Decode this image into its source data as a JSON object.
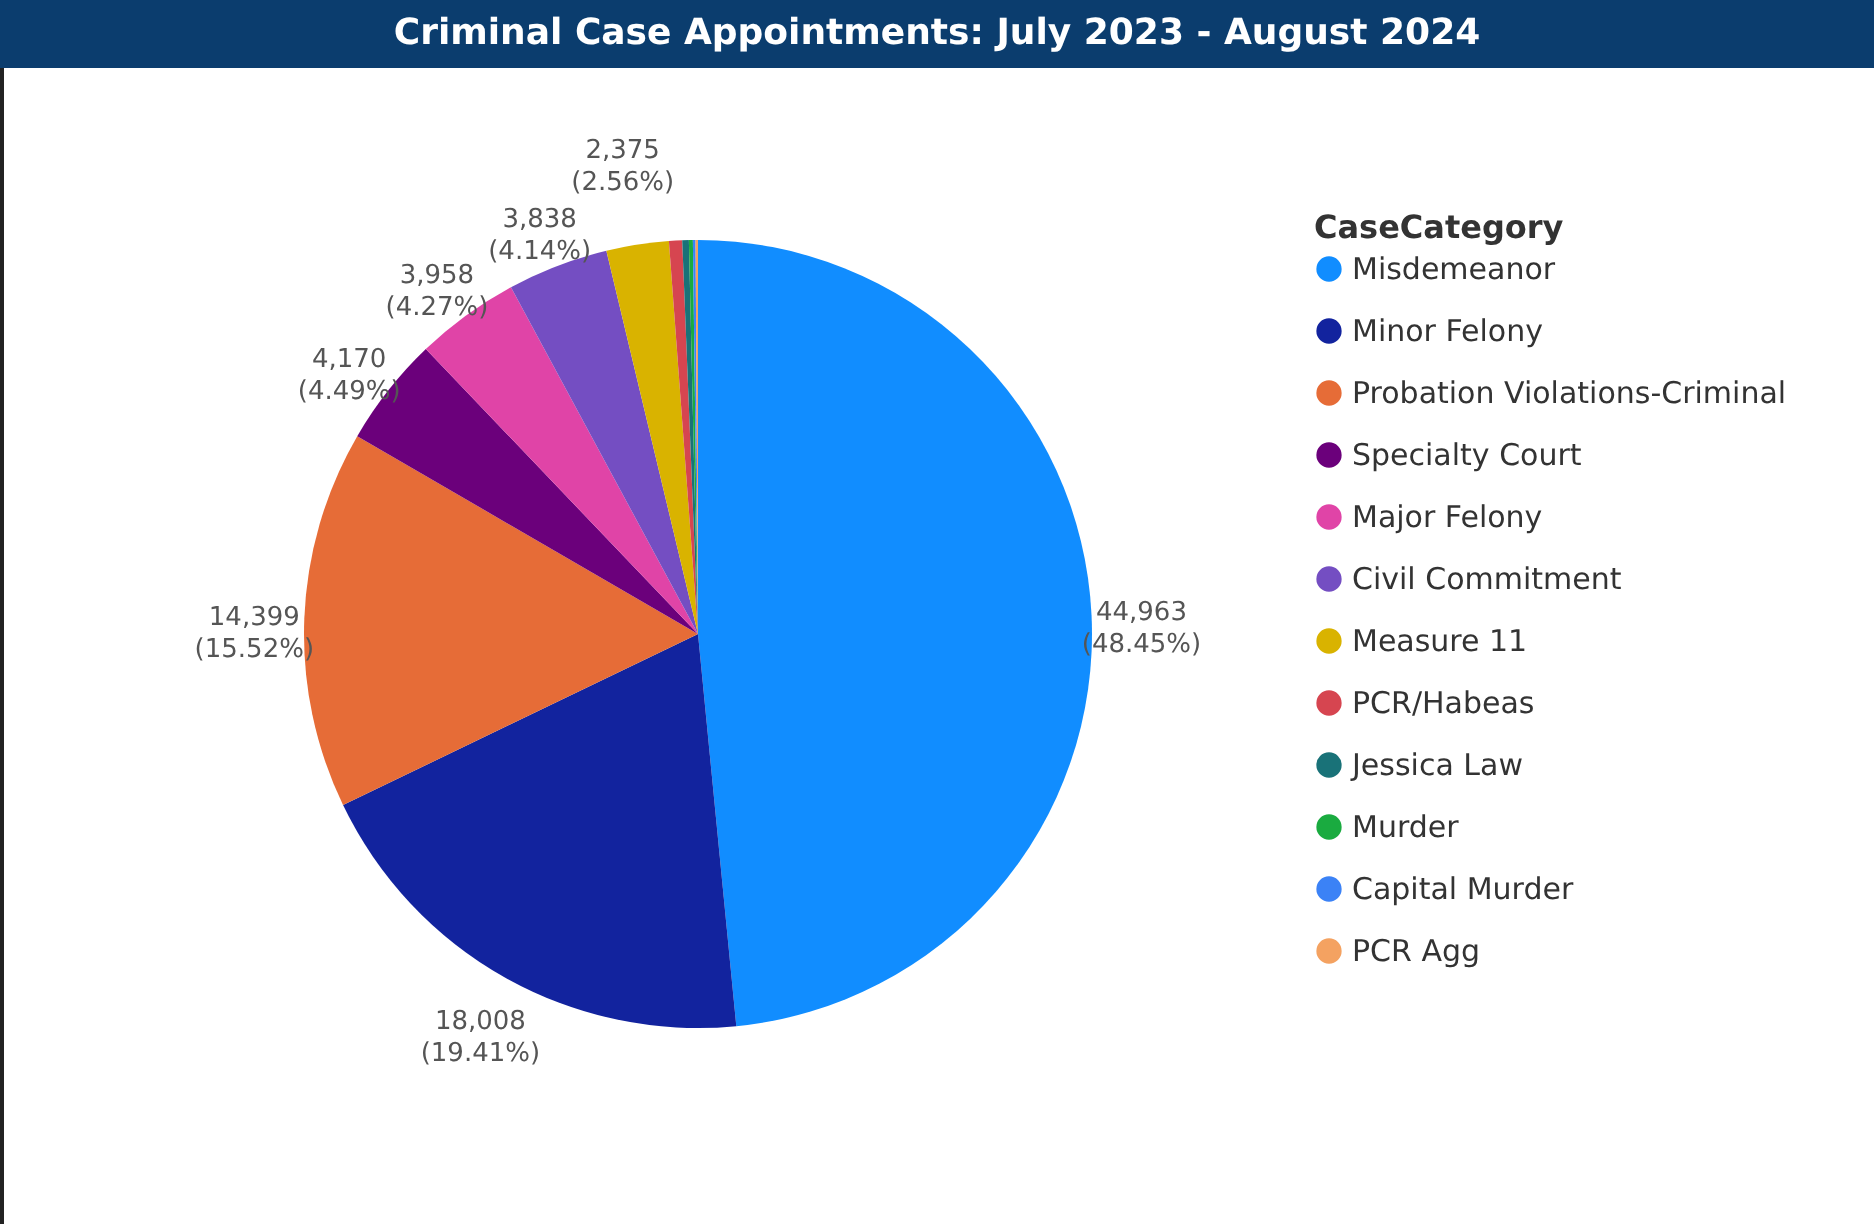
{
  "chart_data": {
    "type": "pie",
    "title": "Criminal Case Appointments: July 2023 - August 2024",
    "legend_title": "CaseCategory",
    "legend": "right",
    "categories": [
      "Misdemeanor",
      "Minor Felony",
      "Probation Violations-Criminal",
      "Specialty Court",
      "Major Felony",
      "Civil Commitment",
      "Measure 11",
      "PCR/Habeas",
      "Jessica Law",
      "Murder",
      "Capital Murder",
      "PCR Agg"
    ],
    "values": [
      44963,
      18008,
      14399,
      4170,
      3958,
      3838,
      2375,
      500,
      250,
      150,
      100,
      92
    ],
    "colors": [
      "#118dff",
      "#12239e",
      "#e66c37",
      "#6b007b",
      "#e044a7",
      "#744ec2",
      "#d9b300",
      "#d64550",
      "#197278",
      "#1aab40",
      "#3b82f6",
      "#f4a261"
    ],
    "value_labels": [
      "44,963 (48.45%)",
      "18,008 (19.41%)",
      "14,399 (15.52%)",
      "4,170 (4.49%)",
      "3,958 (4.27%)",
      "3,838 (4.14%)",
      "2,375 (2.56%)",
      null,
      null,
      null,
      null,
      null
    ]
  }
}
